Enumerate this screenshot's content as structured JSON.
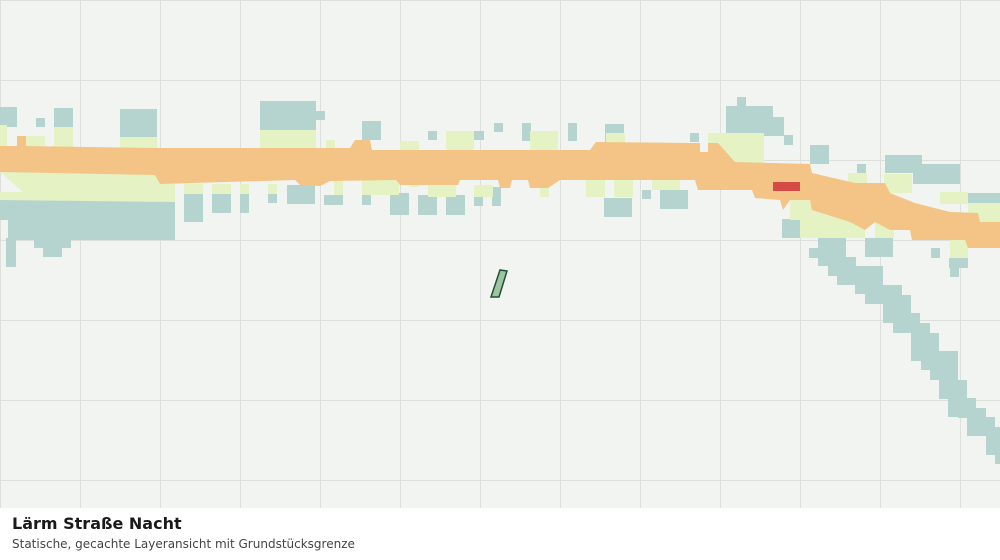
{
  "map": {
    "title": "Lärm Straße Nacht",
    "subtitle": "Statische, gecachte Layeransicht mit Grundstücksgrenze"
  }
}
